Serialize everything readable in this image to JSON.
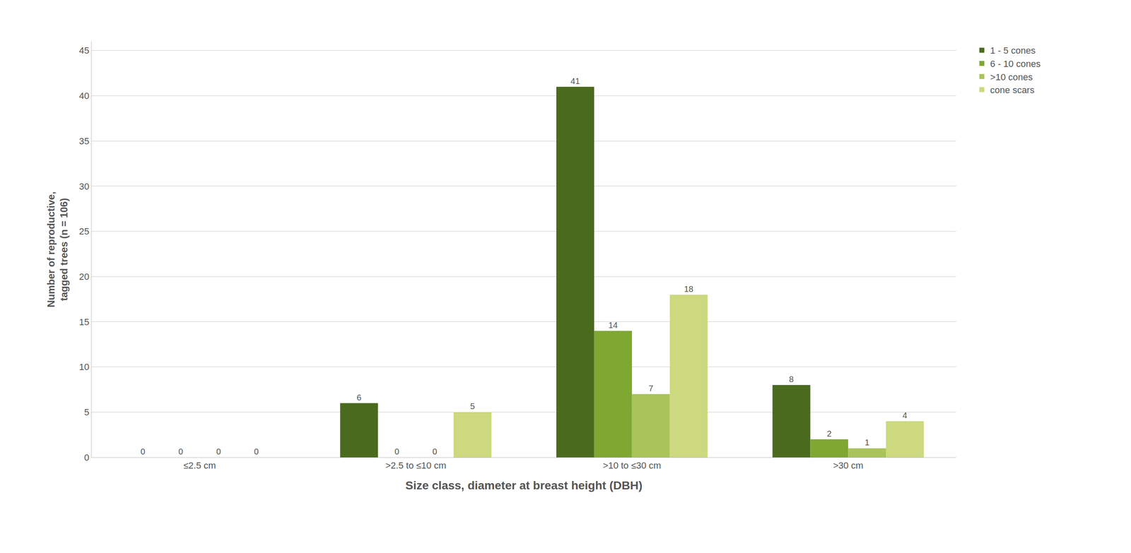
{
  "chart_data": {
    "type": "bar",
    "xlabel": "Size class, diameter at breast height (DBH)",
    "ylabel": "Number of reproductive,\ntagged trees (n = 106)",
    "categories": [
      "≤2.5 cm",
      ">2.5 to ≤10 cm",
      ">10 to ≤30 cm",
      ">30 cm"
    ],
    "series": [
      {
        "name": "1 - 5 cones",
        "color": "#4a6b1e",
        "values": [
          0,
          6,
          41,
          8
        ]
      },
      {
        "name": "6 - 10 cones",
        "color": "#7ea832",
        "values": [
          0,
          0,
          14,
          2
        ]
      },
      {
        "name": ">10 cones",
        "color": "#a8c45a",
        "values": [
          0,
          0,
          7,
          1
        ]
      },
      {
        "name": "cone scars",
        "color": "#ccd97f",
        "values": [
          0,
          5,
          18,
          4
        ]
      }
    ],
    "ylim": [
      0,
      46
    ],
    "yticks": [
      0,
      5,
      10,
      15,
      20,
      25,
      30,
      35,
      40,
      45
    ],
    "grid": true,
    "legend": "upper right",
    "data_labels": true
  }
}
